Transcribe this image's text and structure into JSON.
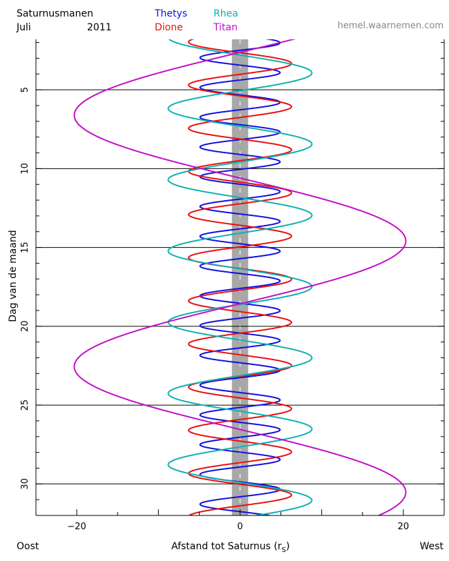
{
  "header": {
    "title": "Saturnusmanen",
    "month": "Juli",
    "year": "2011",
    "website": "hemel.waarnemen.com",
    "legend": [
      {
        "name": "Thetys",
        "color": "#1010e0"
      },
      {
        "name": "Dione",
        "color": "#e81010"
      },
      {
        "name": "Rhea",
        "color": "#10b0b0"
      },
      {
        "name": "Titan",
        "color": "#c010c8"
      }
    ]
  },
  "footer": {
    "left": "Oost",
    "right": "West",
    "xlabel_prefix": "Afstand tot Saturnus (r",
    "xlabel_sub": "S",
    "xlabel_suffix": ")"
  },
  "chart_data": {
    "type": "line",
    "ylabel": "Dag van de maand",
    "xlim": [
      -25,
      25
    ],
    "ylim": [
      32,
      1.8
    ],
    "x_ticks": [
      -20,
      0,
      20
    ],
    "y_ticks": [
      5,
      10,
      15,
      20,
      25,
      30
    ],
    "y_gridlines": [
      5,
      10,
      15,
      20,
      25,
      30
    ],
    "planet_band": {
      "xmin": -1,
      "xmax": 1,
      "color": "#a8a8a8"
    },
    "series": [
      {
        "name": "Thetys",
        "color": "#1010e0",
        "amplitude": 4.9,
        "period_days": 1.888,
        "phase_day": 1.55
      },
      {
        "name": "Dione",
        "color": "#e81010",
        "amplitude": 6.3,
        "period_days": 2.737,
        "phase_day": 2.65
      },
      {
        "name": "Rhea",
        "color": "#10b0b0",
        "amplitude": 8.8,
        "period_days": 4.518,
        "phase_day": 2.8
      },
      {
        "name": "Titan",
        "color": "#c010c8",
        "amplitude": 20.3,
        "period_days": 15.945,
        "phase_day": 10.6
      }
    ]
  }
}
